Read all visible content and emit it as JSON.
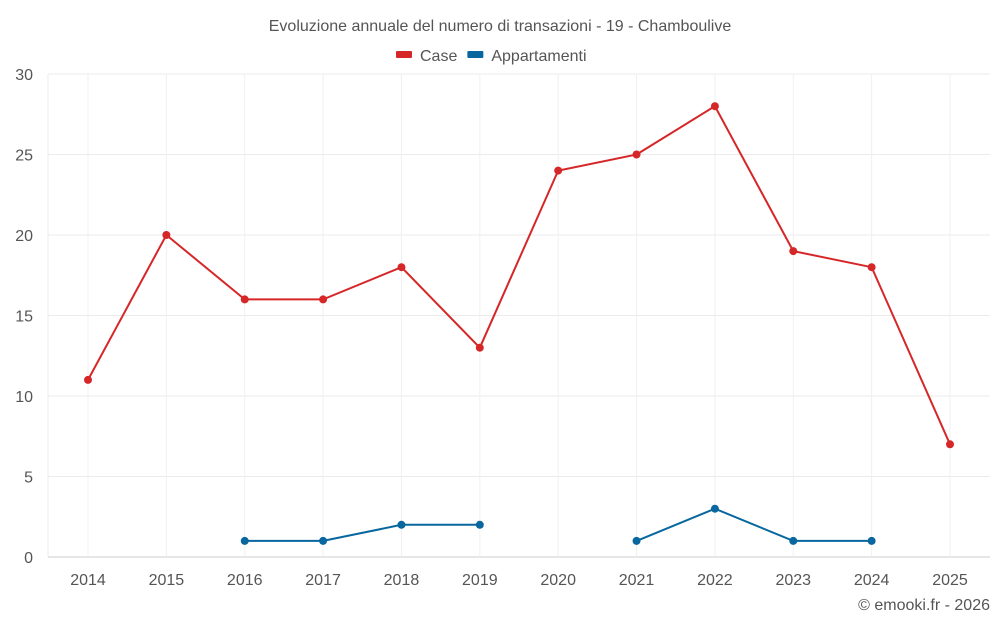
{
  "chart_data": {
    "type": "line",
    "title": "Evoluzione annuale del numero di transazioni - 19 - Chamboulive",
    "xlabel": "",
    "ylabel": "",
    "categories": [
      "2014",
      "2015",
      "2016",
      "2017",
      "2018",
      "2019",
      "2020",
      "2021",
      "2022",
      "2023",
      "2024",
      "2025"
    ],
    "ylim": [
      0,
      30
    ],
    "yticks": [
      0,
      5,
      10,
      15,
      20,
      25,
      30
    ],
    "grid": true,
    "legend_position": "top-center",
    "series": [
      {
        "name": "Case",
        "color": "#d62728",
        "values": [
          11,
          20,
          16,
          16,
          18,
          13,
          24,
          25,
          28,
          19,
          18,
          7
        ]
      },
      {
        "name": "Appartamenti",
        "color": "#08679f",
        "values": [
          null,
          null,
          1,
          1,
          2,
          2,
          null,
          1,
          3,
          1,
          1,
          null
        ]
      }
    ]
  },
  "footer": "© emooki.fr - 2026"
}
